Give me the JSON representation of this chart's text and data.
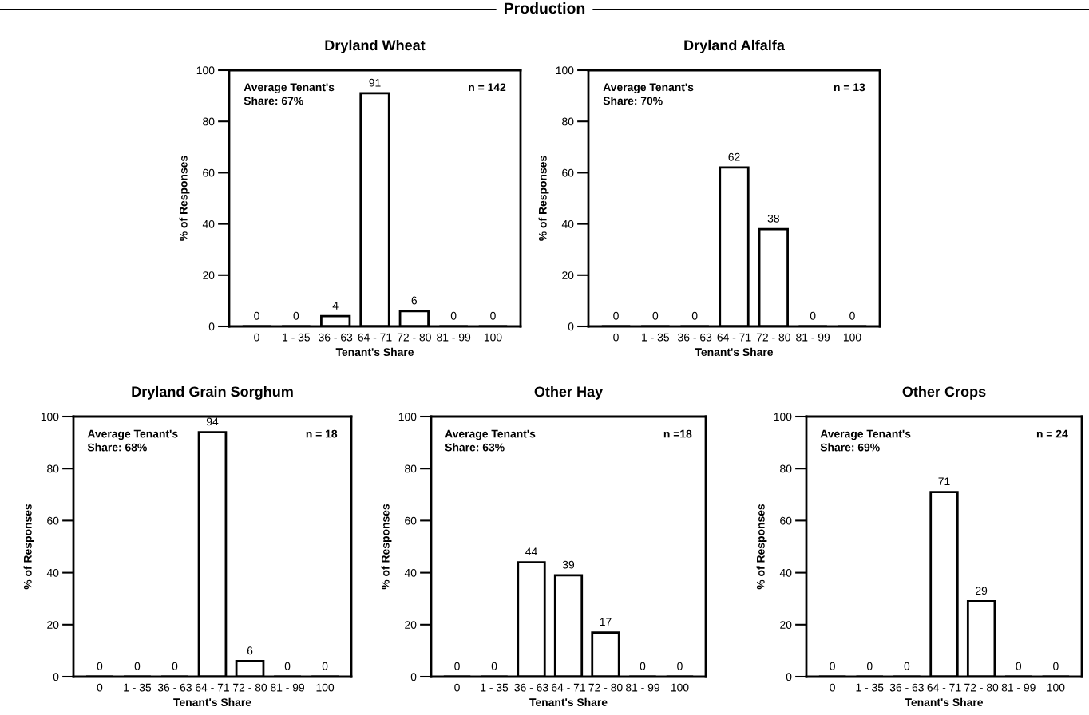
{
  "chart_data": [
    {
      "type": "bar",
      "title": "Dryland Wheat",
      "subtitle": "Production",
      "xlabel": "Tenant's Share",
      "ylabel": "% of Responses",
      "categories": [
        "0",
        "1 - 35",
        "36 - 63",
        "64 - 71",
        "72 - 80",
        "81 - 99",
        "100"
      ],
      "values": [
        0,
        0,
        4,
        91,
        6,
        0,
        0
      ],
      "color": "#ffffff",
      "ylim": [
        0,
        100
      ],
      "yticks": [
        0,
        20,
        40,
        60,
        80,
        100
      ],
      "data_labels": true,
      "grid": false,
      "legend": false,
      "annotations": [
        "Average Tenant's\nShare: 67%",
        "n = 142"
      ]
    },
    {
      "type": "bar",
      "title": "Dryland Alfalfa",
      "xlabel": "Tenant's Share",
      "ylabel": "% of Responses",
      "categories": [
        "0",
        "1 - 35",
        "36 - 63",
        "64 - 71",
        "72 - 80",
        "81 - 99",
        "100"
      ],
      "values": [
        0,
        0,
        0,
        62,
        38,
        0,
        0
      ],
      "color": "#ffffff",
      "ylim": [
        0,
        100
      ],
      "yticks": [
        0,
        20,
        40,
        60,
        80,
        100
      ],
      "data_labels": true,
      "grid": false,
      "legend": false,
      "annotations": [
        "Average Tenant's\nShare: 70%",
        "n = 13"
      ]
    },
    {
      "type": "bar",
      "title": "Dryland Grain Sorghum",
      "xlabel": "Tenant's Share",
      "ylabel": "% of Responses",
      "categories": [
        "0",
        "1 - 35",
        "36 - 63",
        "64 - 71",
        "72 - 80",
        "81 - 99",
        "100"
      ],
      "values": [
        0,
        0,
        0,
        94,
        6,
        0,
        0
      ],
      "color": "#ffffff",
      "ylim": [
        0,
        100
      ],
      "yticks": [
        0,
        20,
        40,
        60,
        80,
        100
      ],
      "data_labels": true,
      "grid": false,
      "legend": false,
      "annotations": [
        "Average Tenant's\nShare: 68%",
        "n = 18"
      ]
    },
    {
      "type": "bar",
      "title": "Other Hay",
      "xlabel": "Tenant's Share",
      "ylabel": "% of Responses",
      "categories": [
        "0",
        "1 - 35",
        "36 - 63",
        "64 - 71",
        "72 - 80",
        "81 - 99",
        "100"
      ],
      "values": [
        0,
        0,
        44,
        39,
        17,
        0,
        0
      ],
      "color": "#ffffff",
      "ylim": [
        0,
        100
      ],
      "yticks": [
        0,
        20,
        40,
        60,
        80,
        100
      ],
      "data_labels": true,
      "grid": false,
      "legend": false,
      "annotations": [
        "Average Tenant's\nShare: 63%",
        "n =18"
      ]
    },
    {
      "type": "bar",
      "title": "Other Crops",
      "xlabel": "Tenant's Share",
      "ylabel": "% of Responses",
      "categories": [
        "0",
        "1 - 35",
        "36 - 63",
        "64 - 71",
        "72 - 80",
        "81 - 99",
        "100"
      ],
      "values": [
        0,
        0,
        0,
        71,
        29,
        0,
        0
      ],
      "color": "#ffffff",
      "ylim": [
        0,
        100
      ],
      "yticks": [
        0,
        20,
        40,
        60,
        80,
        100
      ],
      "data_labels": true,
      "grid": false,
      "legend": false,
      "annotations": [
        "Average Tenant's\nShare: 69%",
        "n = 24"
      ]
    }
  ]
}
